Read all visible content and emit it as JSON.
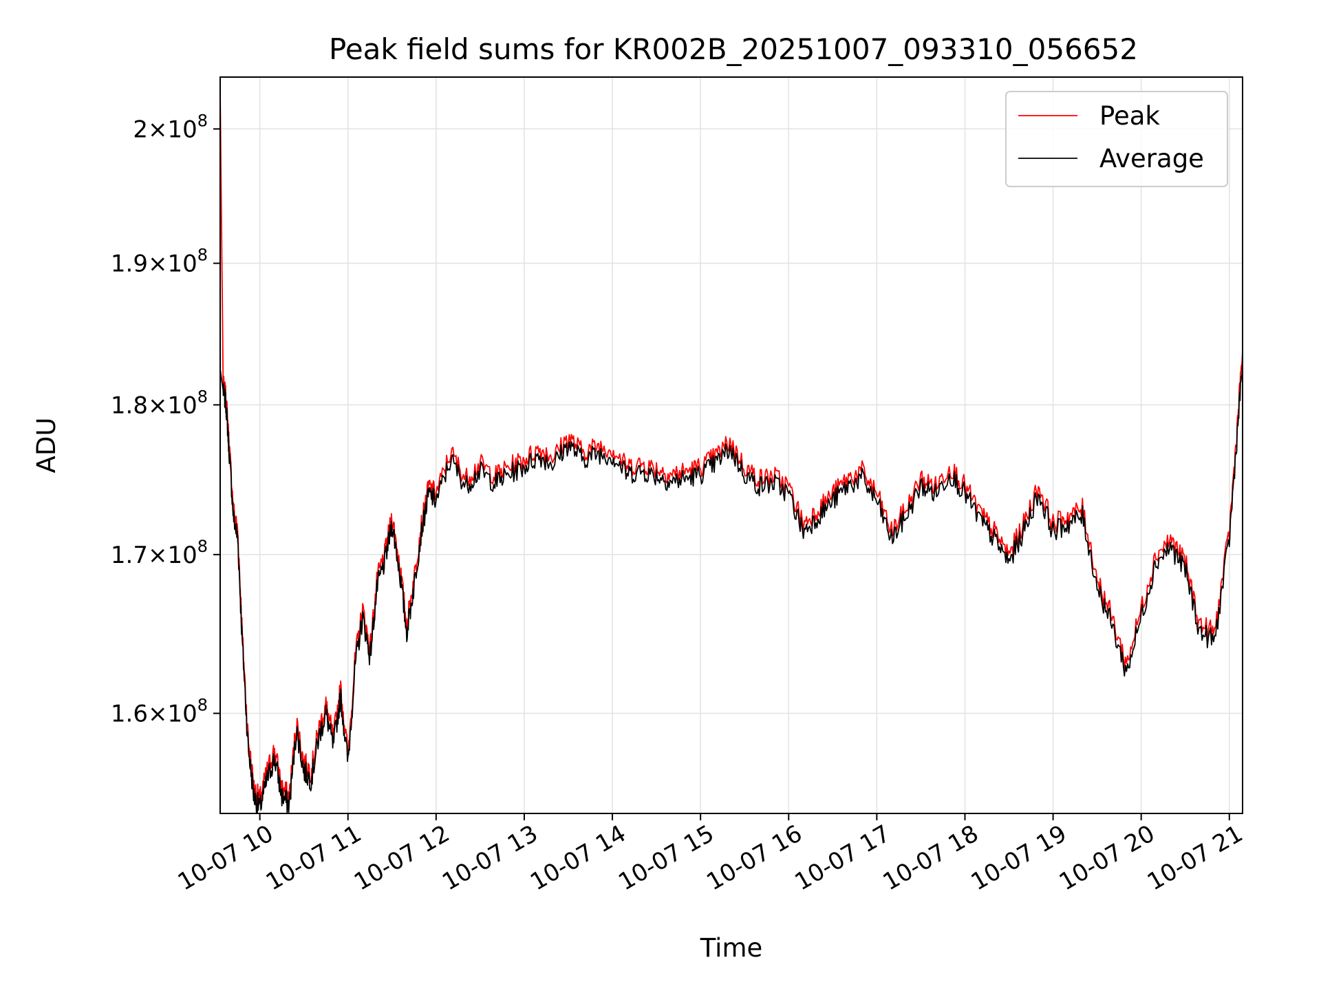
{
  "chart_data": {
    "type": "line",
    "title": "Peak field sums for KR002B_20251007_093310_056652",
    "xlabel": "Time",
    "ylabel": "ADU",
    "x_ticks": [
      "10-07 10",
      "10-07 11",
      "10-07 12",
      "10-07 13",
      "10-07 14",
      "10-07 15",
      "10-07 16",
      "10-07 17",
      "10-07 18",
      "10-07 19",
      "10-07 20",
      "10-07 21"
    ],
    "y_ticks": [
      {
        "value": 160000000,
        "mantissa": "1.6",
        "exponent": "8"
      },
      {
        "value": 170000000,
        "mantissa": "1.7",
        "exponent": "8"
      },
      {
        "value": 180000000,
        "mantissa": "1.8",
        "exponent": "8"
      },
      {
        "value": 190000000,
        "mantissa": "1.9",
        "exponent": "8"
      },
      {
        "value": 200000000,
        "mantissa": "2",
        "exponent": "8"
      }
    ],
    "y_tick_times": "×10",
    "xlim": [
      "2025-10-07 09:33",
      "2025-10-07 21:09"
    ],
    "ylim": [
      154000000,
      204000000
    ],
    "y_scale": "log",
    "grid": true,
    "legend_position": "top-right",
    "series": [
      {
        "name": "Peak",
        "color": "#ff0000",
        "x": [
          "2025-10-07 09:33",
          "2025-10-07 09:35",
          "2025-10-07 09:37",
          "2025-10-07 09:39",
          "2025-10-07 09:42",
          "2025-10-07 09:45",
          "2025-10-07 09:48",
          "2025-10-07 09:52",
          "2025-10-07 09:56",
          "2025-10-07 10:00",
          "2025-10-07 10:05",
          "2025-10-07 10:10",
          "2025-10-07 10:15",
          "2025-10-07 10:20",
          "2025-10-07 10:25",
          "2025-10-07 10:30",
          "2025-10-07 10:35",
          "2025-10-07 10:40",
          "2025-10-07 10:45",
          "2025-10-07 10:50",
          "2025-10-07 10:55",
          "2025-10-07 11:00",
          "2025-10-07 11:05",
          "2025-10-07 11:10",
          "2025-10-07 11:15",
          "2025-10-07 11:20",
          "2025-10-07 11:25",
          "2025-10-07 11:30",
          "2025-10-07 11:35",
          "2025-10-07 11:40",
          "2025-10-07 11:45",
          "2025-10-07 11:50",
          "2025-10-07 11:55",
          "2025-10-07 12:00",
          "2025-10-07 12:10",
          "2025-10-07 12:20",
          "2025-10-07 12:30",
          "2025-10-07 12:40",
          "2025-10-07 12:50",
          "2025-10-07 13:00",
          "2025-10-07 13:10",
          "2025-10-07 13:20",
          "2025-10-07 13:30",
          "2025-10-07 13:40",
          "2025-10-07 13:50",
          "2025-10-07 14:00",
          "2025-10-07 14:10",
          "2025-10-07 14:20",
          "2025-10-07 14:30",
          "2025-10-07 14:40",
          "2025-10-07 14:50",
          "2025-10-07 15:00",
          "2025-10-07 15:10",
          "2025-10-07 15:20",
          "2025-10-07 15:30",
          "2025-10-07 15:40",
          "2025-10-07 15:50",
          "2025-10-07 16:00",
          "2025-10-07 16:10",
          "2025-10-07 16:20",
          "2025-10-07 16:30",
          "2025-10-07 16:40",
          "2025-10-07 16:50",
          "2025-10-07 17:00",
          "2025-10-07 17:10",
          "2025-10-07 17:20",
          "2025-10-07 17:30",
          "2025-10-07 17:40",
          "2025-10-07 17:50",
          "2025-10-07 18:00",
          "2025-10-07 18:10",
          "2025-10-07 18:20",
          "2025-10-07 18:30",
          "2025-10-07 18:40",
          "2025-10-07 18:50",
          "2025-10-07 19:00",
          "2025-10-07 19:10",
          "2025-10-07 19:20",
          "2025-10-07 19:30",
          "2025-10-07 19:40",
          "2025-10-07 19:50",
          "2025-10-07 20:00",
          "2025-10-07 20:10",
          "2025-10-07 20:20",
          "2025-10-07 20:30",
          "2025-10-07 20:40",
          "2025-10-07 20:50",
          "2025-10-07 21:00",
          "2025-10-07 21:05",
          "2025-10-07 21:09"
        ],
        "values": [
          203000000,
          181500000,
          180500000,
          177500000,
          173000000,
          171500000,
          165000000,
          158500000,
          155500000,
          154800000,
          156500000,
          157800000,
          155500000,
          155000000,
          159500000,
          157000000,
          156500000,
          159000000,
          160500000,
          158500000,
          161500000,
          157500000,
          163500000,
          166500000,
          164000000,
          168500000,
          170000000,
          172500000,
          169500000,
          165500000,
          168500000,
          172000000,
          174500000,
          174000000,
          176800000,
          175000000,
          176000000,
          175200000,
          175800000,
          176300000,
          177000000,
          176500000,
          177800000,
          176800000,
          177200000,
          177000000,
          175800000,
          176000000,
          175700000,
          175300000,
          175500000,
          175800000,
          176500000,
          177500000,
          175800000,
          175000000,
          175200000,
          174500000,
          172000000,
          173000000,
          174000000,
          175000000,
          175500000,
          174000000,
          171500000,
          173000000,
          175000000,
          174500000,
          175800000,
          174500000,
          172800000,
          171500000,
          170000000,
          172000000,
          174500000,
          172000000,
          172500000,
          173000000,
          168500000,
          166000000,
          163000000,
          166500000,
          170000000,
          171000000,
          169500000,
          165500000,
          165000000,
          171500000,
          178000000,
          183800000
        ]
      },
      {
        "name": "Average",
        "color": "#000000",
        "x": [
          "2025-10-07 09:33",
          "2025-10-07 09:35",
          "2025-10-07 09:37",
          "2025-10-07 09:39",
          "2025-10-07 09:42",
          "2025-10-07 09:45",
          "2025-10-07 09:48",
          "2025-10-07 09:52",
          "2025-10-07 09:56",
          "2025-10-07 10:00",
          "2025-10-07 10:05",
          "2025-10-07 10:10",
          "2025-10-07 10:15",
          "2025-10-07 10:20",
          "2025-10-07 10:25",
          "2025-10-07 10:30",
          "2025-10-07 10:35",
          "2025-10-07 10:40",
          "2025-10-07 10:45",
          "2025-10-07 10:50",
          "2025-10-07 10:55",
          "2025-10-07 11:00",
          "2025-10-07 11:05",
          "2025-10-07 11:10",
          "2025-10-07 11:15",
          "2025-10-07 11:20",
          "2025-10-07 11:25",
          "2025-10-07 11:30",
          "2025-10-07 11:35",
          "2025-10-07 11:40",
          "2025-10-07 11:45",
          "2025-10-07 11:50",
          "2025-10-07 11:55",
          "2025-10-07 12:00",
          "2025-10-07 12:10",
          "2025-10-07 12:20",
          "2025-10-07 12:30",
          "2025-10-07 12:40",
          "2025-10-07 12:50",
          "2025-10-07 13:00",
          "2025-10-07 13:10",
          "2025-10-07 13:20",
          "2025-10-07 13:30",
          "2025-10-07 13:40",
          "2025-10-07 13:50",
          "2025-10-07 14:00",
          "2025-10-07 14:10",
          "2025-10-07 14:20",
          "2025-10-07 14:30",
          "2025-10-07 14:40",
          "2025-10-07 14:50",
          "2025-10-07 15:00",
          "2025-10-07 15:10",
          "2025-10-07 15:20",
          "2025-10-07 15:30",
          "2025-10-07 15:40",
          "2025-10-07 15:50",
          "2025-10-07 16:00",
          "2025-10-07 16:10",
          "2025-10-07 16:20",
          "2025-10-07 16:30",
          "2025-10-07 16:40",
          "2025-10-07 16:50",
          "2025-10-07 17:00",
          "2025-10-07 17:10",
          "2025-10-07 17:20",
          "2025-10-07 17:30",
          "2025-10-07 17:40",
          "2025-10-07 17:50",
          "2025-10-07 18:00",
          "2025-10-07 18:10",
          "2025-10-07 18:20",
          "2025-10-07 18:30",
          "2025-10-07 18:40",
          "2025-10-07 18:50",
          "2025-10-07 19:00",
          "2025-10-07 19:10",
          "2025-10-07 19:20",
          "2025-10-07 19:30",
          "2025-10-07 19:40",
          "2025-10-07 19:50",
          "2025-10-07 20:00",
          "2025-10-07 20:10",
          "2025-10-07 20:20",
          "2025-10-07 20:30",
          "2025-10-07 20:40",
          "2025-10-07 20:50",
          "2025-10-07 21:00",
          "2025-10-07 21:05",
          "2025-10-07 21:09"
        ],
        "values": [
          182500000,
          181000000,
          180000000,
          177000000,
          172500000,
          171000000,
          164500000,
          158000000,
          155000000,
          154300000,
          156000000,
          157300000,
          155000000,
          154500000,
          159000000,
          156500000,
          156000000,
          158500000,
          160000000,
          158000000,
          161000000,
          157000000,
          163000000,
          166000000,
          163500000,
          168000000,
          169500000,
          172000000,
          169000000,
          165000000,
          168000000,
          171500000,
          174000000,
          173500000,
          176300000,
          174500000,
          175500000,
          174700000,
          175300000,
          175800000,
          176500000,
          176000000,
          177300000,
          176300000,
          176700000,
          176500000,
          175300000,
          175500000,
          175200000,
          174800000,
          175000000,
          175300000,
          176000000,
          177000000,
          175300000,
          174500000,
          174700000,
          174000000,
          171500000,
          172500000,
          173500000,
          174500000,
          175000000,
          173500000,
          171000000,
          172500000,
          174500000,
          174000000,
          175300000,
          174000000,
          172300000,
          171000000,
          169500000,
          171500000,
          174000000,
          171500000,
          172000000,
          172500000,
          168000000,
          165500000,
          162500000,
          166000000,
          169500000,
          170500000,
          169000000,
          165000000,
          164500000,
          171000000,
          177500000,
          183000000
        ]
      }
    ]
  }
}
